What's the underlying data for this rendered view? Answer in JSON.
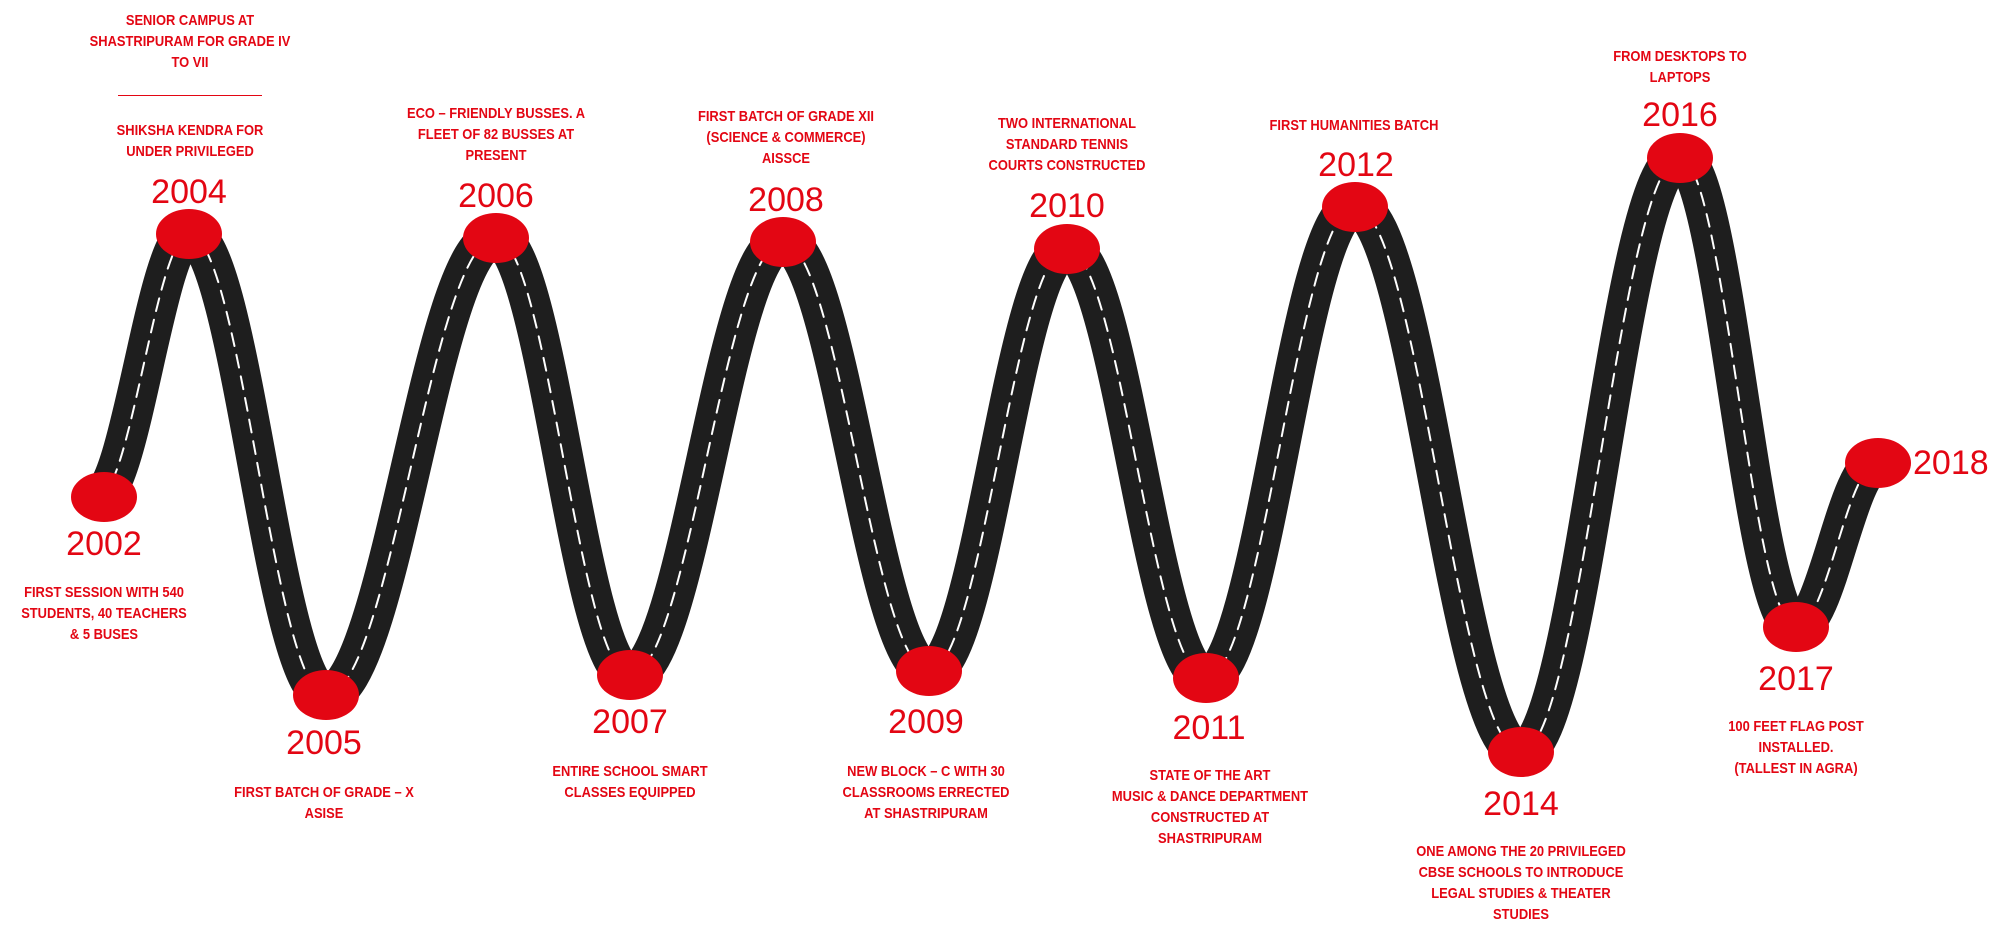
{
  "timeline": {
    "accent_color": "#e30613",
    "road_color": "#1e1e1e",
    "milestones": [
      {
        "year": "2002",
        "lines": [
          "FIRST SESSION WITH 540",
          "STUDENTS, 40 TEACHERS",
          "& 5 BUSES"
        ]
      },
      {
        "year": "2004",
        "lines": [
          "SHIKSHA KENDRA FOR",
          "UNDER PRIVILEGED"
        ]
      },
      {
        "year": "2005",
        "lines": [
          "FIRST BATCH OF GRADE – X",
          "ASISE"
        ]
      },
      {
        "year": "2006",
        "lines": [
          "ECO – FRIENDLY BUSSES. A",
          "FLEET OF 82 BUSSES AT",
          "PRESENT"
        ]
      },
      {
        "year": "2007",
        "lines": [
          "ENTIRE SCHOOL SMART",
          "CLASSES EQUIPPED"
        ]
      },
      {
        "year": "2008",
        "lines": [
          "FIRST BATCH OF GRADE XII",
          "(SCIENCE & COMMERCE)",
          "AISSCE"
        ]
      },
      {
        "year": "2009",
        "lines": [
          "NEW BLOCK – C WITH 30",
          "CLASSROOMS ERRECTED",
          "AT SHASTRIPURAM"
        ]
      },
      {
        "year": "2010",
        "lines": [
          "TWO INTERNATIONAL",
          "STANDARD TENNIS",
          "COURTS CONSTRUCTED"
        ]
      },
      {
        "year": "2011",
        "lines": [
          "STATE OF THE ART",
          "MUSIC & DANCE DEPARTMENT",
          "CONSTRUCTED AT",
          "SHASTRIPURAM"
        ]
      },
      {
        "year": "2012",
        "lines": [
          "FIRST HUMANITIES BATCH"
        ]
      },
      {
        "year": "2014",
        "lines": [
          "ONE AMONG THE 20 PRIVILEGED",
          "CBSE SCHOOLS TO INTRODUCE",
          "LEGAL STUDIES & THEATER",
          "STUDIES"
        ]
      },
      {
        "year": "2016",
        "lines": [
          "FROM DESKTOPS TO",
          "LAPTOPS"
        ]
      },
      {
        "year": "2017",
        "lines": [
          "100 FEET FLAG POST",
          "INSTALLED.",
          "(TALLEST IN AGRA)"
        ]
      },
      {
        "year": "2018",
        "lines": []
      }
    ],
    "extra_2004": {
      "lines": [
        "SENIOR CAMPUS AT",
        "SHASTRIPURAM FOR GRADE IV",
        "TO VII"
      ]
    }
  }
}
